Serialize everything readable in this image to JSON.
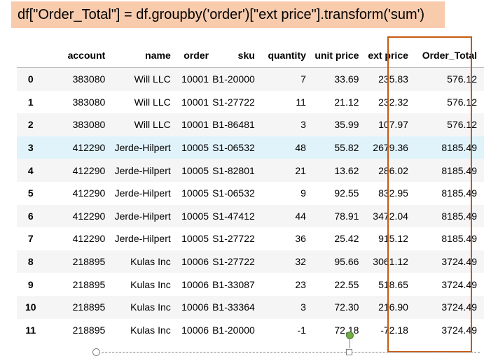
{
  "banner": {
    "code": "df[\"Order_Total\"] = df.groupby('order')[\"ext price\"].transform('sum')",
    "background": "#f8cbad"
  },
  "table": {
    "columns": [
      "",
      "account",
      "name",
      "order",
      "sku",
      "quantity",
      "unit price",
      "ext price",
      "Order_Total"
    ],
    "rows": [
      [
        "0",
        "383080",
        "Will LLC",
        "10001",
        "B1-20000",
        "7",
        "33.69",
        "235.83",
        "576.12"
      ],
      [
        "1",
        "383080",
        "Will LLC",
        "10001",
        "S1-27722",
        "11",
        "21.12",
        "232.32",
        "576.12"
      ],
      [
        "2",
        "383080",
        "Will LLC",
        "10001",
        "B1-86481",
        "3",
        "35.99",
        "107.97",
        "576.12"
      ],
      [
        "3",
        "412290",
        "Jerde-Hilpert",
        "10005",
        "S1-06532",
        "48",
        "55.82",
        "2679.36",
        "8185.49"
      ],
      [
        "4",
        "412290",
        "Jerde-Hilpert",
        "10005",
        "S1-82801",
        "21",
        "13.62",
        "286.02",
        "8185.49"
      ],
      [
        "5",
        "412290",
        "Jerde-Hilpert",
        "10005",
        "S1-06532",
        "9",
        "92.55",
        "832.95",
        "8185.49"
      ],
      [
        "6",
        "412290",
        "Jerde-Hilpert",
        "10005",
        "S1-47412",
        "44",
        "78.91",
        "3472.04",
        "8185.49"
      ],
      [
        "7",
        "412290",
        "Jerde-Hilpert",
        "10005",
        "S1-27722",
        "36",
        "25.42",
        "915.12",
        "8185.49"
      ],
      [
        "8",
        "218895",
        "Kulas Inc",
        "10006",
        "S1-27722",
        "32",
        "95.66",
        "3061.12",
        "3724.49"
      ],
      [
        "9",
        "218895",
        "Kulas Inc",
        "10006",
        "B1-33087",
        "23",
        "22.55",
        "518.65",
        "3724.49"
      ],
      [
        "10",
        "218895",
        "Kulas Inc",
        "10006",
        "B1-33364",
        "3",
        "72.30",
        "216.90",
        "3724.49"
      ],
      [
        "11",
        "218895",
        "Kulas Inc",
        "10006",
        "B1-20000",
        "-1",
        "72.18",
        "-72.18",
        "3724.49"
      ]
    ],
    "hovered_row_index": 3,
    "row_stripe_color": "#f5f5f5",
    "row_hover_color": "#e1f3fa"
  },
  "highlight": {
    "column": "Order_Total",
    "border_color": "#c55a11"
  },
  "selection": {
    "rotate_handle_color": "#70ad47"
  }
}
